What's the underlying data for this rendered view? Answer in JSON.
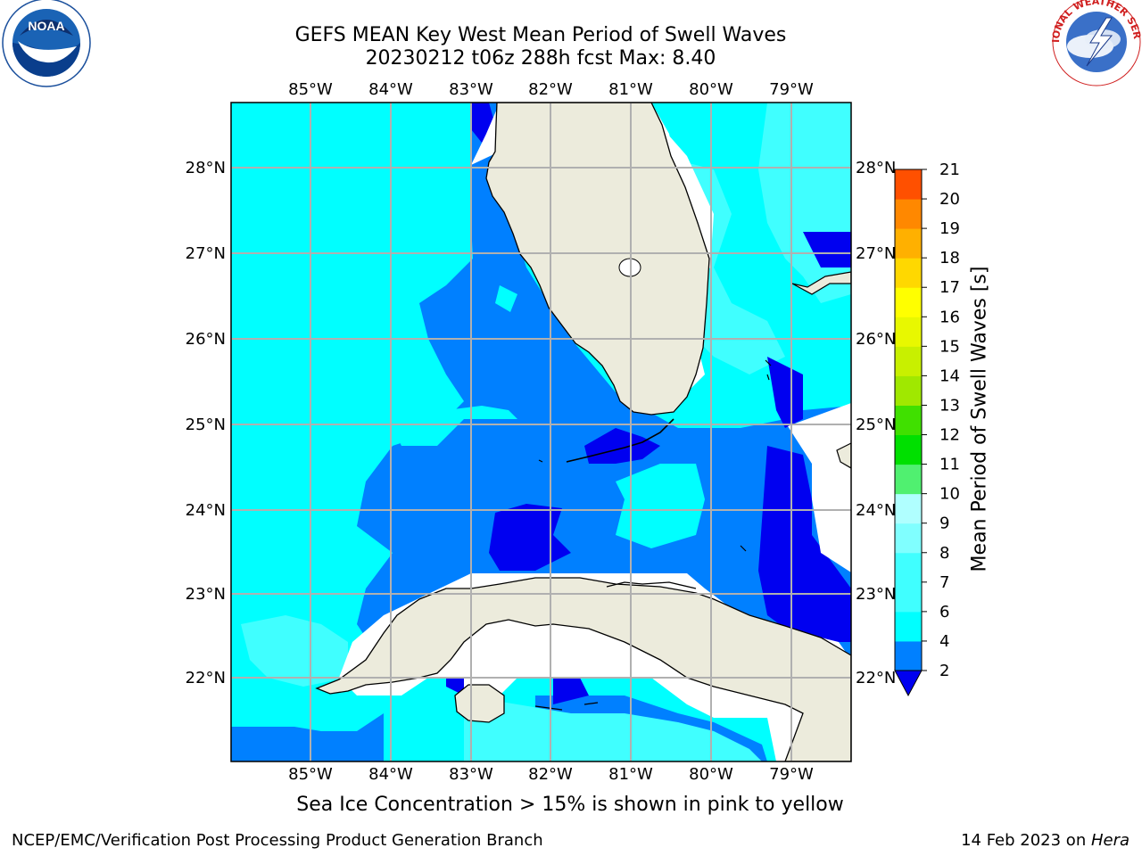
{
  "header": {
    "title_line1": "GEFS MEAN Key West Mean Period of Swell Waves",
    "title_line2": "20230212 t06z 288h fcst   Max: 8.40"
  },
  "logos": {
    "left": {
      "name": "NOAA",
      "ring_text": "NATIONAL OCEANIC AND ATMOSPHERIC ADMINISTRATION · U.S. DEPARTMENT OF COMMERCE"
    },
    "right": {
      "name": "NATIONAL WEATHER SERVICE"
    }
  },
  "map": {
    "lon_labels": [
      "85°W",
      "84°W",
      "83°W",
      "82°W",
      "81°W",
      "80°W",
      "79°W"
    ],
    "lat_labels": [
      "28°N",
      "27°N",
      "26°N",
      "25°N",
      "24°N",
      "23°N",
      "22°N"
    ],
    "colors": {
      "land": "#ecebdc",
      "grid": "#b0b0b0",
      "c2_4": "#0080ff",
      "c4_6": "#00ffff",
      "c6_8": "#40ffff",
      "below2": "#0000f0"
    }
  },
  "colorbar": {
    "label": "Mean Period of Swell Waves [s]",
    "levels": [
      {
        "value": "2",
        "color": "#0080ff"
      },
      {
        "value": "4",
        "color": "#00ffff"
      },
      {
        "value": "6",
        "color": "#40ffff"
      },
      {
        "value": "7",
        "color": "#40ffff"
      },
      {
        "value": "8",
        "color": "#80ffff"
      },
      {
        "value": "9",
        "color": "#b0ffff"
      },
      {
        "value": "10",
        "color": "#50f070"
      },
      {
        "value": "11",
        "color": "#00e000"
      },
      {
        "value": "12",
        "color": "#40e000"
      },
      {
        "value": "13",
        "color": "#a0e800"
      },
      {
        "value": "14",
        "color": "#c8f000"
      },
      {
        "value": "15",
        "color": "#e8f800"
      },
      {
        "value": "16",
        "color": "#ffff00"
      },
      {
        "value": "17",
        "color": "#ffd800"
      },
      {
        "value": "18",
        "color": "#ffb000"
      },
      {
        "value": "19",
        "color": "#ff8800"
      },
      {
        "value": "20",
        "color": "#ff5000"
      },
      {
        "value": "21",
        "color": "#ff2800"
      }
    ],
    "under_color": "#0000f0"
  },
  "caption": "Sea Ice Concentration > 15% is shown in pink to yellow",
  "footer": {
    "left": "NCEP/EMC/Verification Post Processing Product Generation Branch",
    "date": "14 Feb 2023 on ",
    "machine": "Hera"
  }
}
